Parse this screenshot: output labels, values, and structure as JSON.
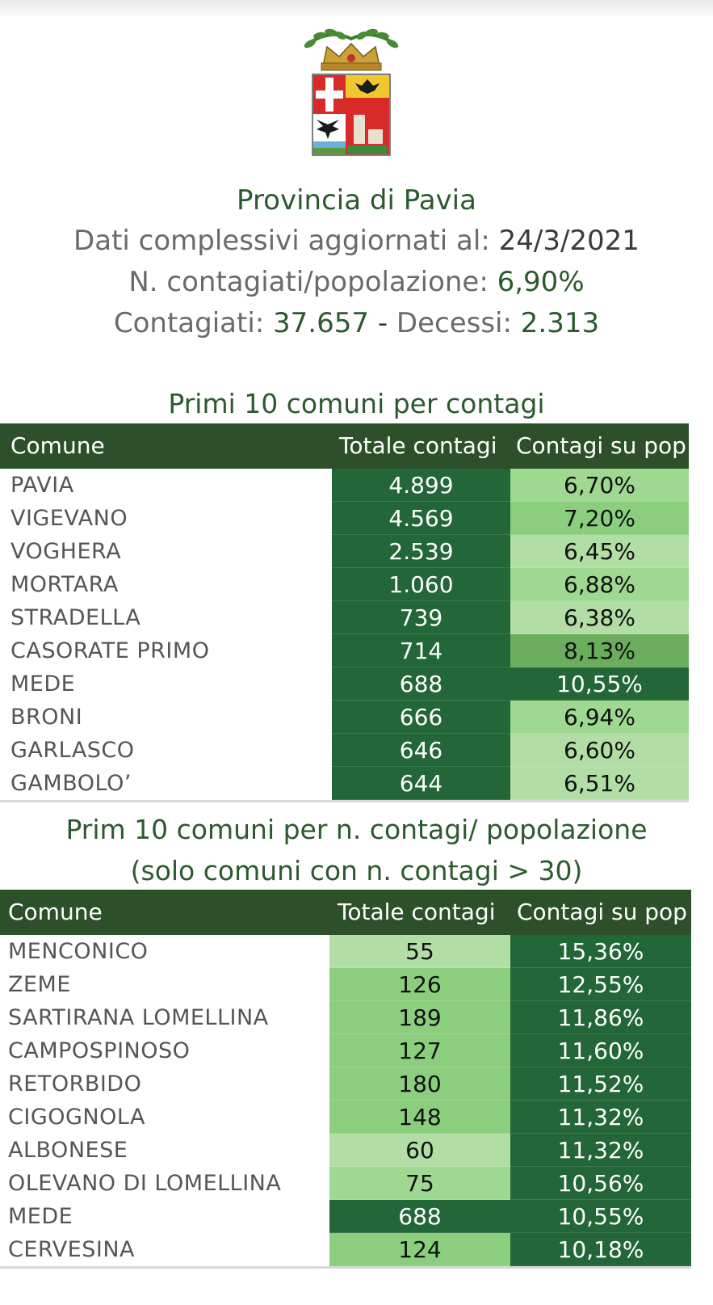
{
  "header": {
    "title": "Provincia di Pavia",
    "updated_label": "Dati complessivi aggiornati al:",
    "updated_value": "24/3/2021",
    "ratio_label": "N. contagiati/popolazione:",
    "ratio_value": "6,90%",
    "infected_label": "Contagiati:",
    "infected_value": "37.657",
    "separator": "-",
    "deaths_label": "Decessi:",
    "deaths_value": "2.313"
  },
  "colors": {
    "header_bg": "#2d4f2a",
    "title_green": "#2c5a2e",
    "dark_cell": "#236638",
    "scale": [
      "#b2dea6",
      "#9ed891",
      "#8bcf7e",
      "#6aad5c",
      "#236638"
    ]
  },
  "icons": {
    "crest": "provincia-di-pavia-coat-of-arms"
  },
  "table1": {
    "title": "Primi 10 comuni per contagi",
    "columns": [
      "Comune",
      "Totale contagi",
      "Contagi su pop"
    ],
    "rows": [
      {
        "comune": "PAVIA",
        "totale": "4.899",
        "perc": "6,70%",
        "tot_level": 4,
        "perc_level": 1
      },
      {
        "comune": "VIGEVANO",
        "totale": "4.569",
        "perc": "7,20%",
        "tot_level": 4,
        "perc_level": 2
      },
      {
        "comune": "VOGHERA",
        "totale": "2.539",
        "perc": "6,45%",
        "tot_level": 4,
        "perc_level": 0
      },
      {
        "comune": "MORTARA",
        "totale": "1.060",
        "perc": "6,88%",
        "tot_level": 4,
        "perc_level": 1
      },
      {
        "comune": "STRADELLA",
        "totale": "739",
        "perc": "6,38%",
        "tot_level": 4,
        "perc_level": 0
      },
      {
        "comune": "CASORATE PRIMO",
        "totale": "714",
        "perc": "8,13%",
        "tot_level": 4,
        "perc_level": 3
      },
      {
        "comune": "MEDE",
        "totale": "688",
        "perc": "10,55%",
        "tot_level": 4,
        "perc_level": 4
      },
      {
        "comune": "BRONI",
        "totale": "666",
        "perc": "6,94%",
        "tot_level": 4,
        "perc_level": 1
      },
      {
        "comune": "GARLASCO",
        "totale": "646",
        "perc": "6,60%",
        "tot_level": 4,
        "perc_level": 0
      },
      {
        "comune": "GAMBOLO’",
        "totale": "644",
        "perc": "6,51%",
        "tot_level": 4,
        "perc_level": 0
      }
    ]
  },
  "table2": {
    "title_line1": "Prim 10 comuni per n. contagi/ popolazione",
    "title_line2": "(solo comuni con n. contagi > 30)",
    "columns": [
      "Comune",
      "Totale contagi",
      "Contagi su pop"
    ],
    "rows": [
      {
        "comune": "MENCONICO",
        "totale": "55",
        "perc": "15,36%",
        "tot_level": 0,
        "perc_level": 4
      },
      {
        "comune": "ZEME",
        "totale": "126",
        "perc": "12,55%",
        "tot_level": 2,
        "perc_level": 4
      },
      {
        "comune": "SARTIRANA LOMELLINA",
        "totale": "189",
        "perc": "11,86%",
        "tot_level": 2,
        "perc_level": 4
      },
      {
        "comune": "CAMPOSPINOSO",
        "totale": "127",
        "perc": "11,60%",
        "tot_level": 2,
        "perc_level": 4
      },
      {
        "comune": "RETORBIDO",
        "totale": "180",
        "perc": "11,52%",
        "tot_level": 2,
        "perc_level": 4
      },
      {
        "comune": "CIGOGNOLA",
        "totale": "148",
        "perc": "11,32%",
        "tot_level": 2,
        "perc_level": 4
      },
      {
        "comune": "ALBONESE",
        "totale": "60",
        "perc": "11,32%",
        "tot_level": 0,
        "perc_level": 4
      },
      {
        "comune": "OLEVANO DI LOMELLINA",
        "totale": "75",
        "perc": "10,56%",
        "tot_level": 1,
        "perc_level": 4
      },
      {
        "comune": "MEDE",
        "totale": "688",
        "perc": "10,55%",
        "tot_level": 4,
        "perc_level": 4
      },
      {
        "comune": "CERVESINA",
        "totale": "124",
        "perc": "10,18%",
        "tot_level": 2,
        "perc_level": 4
      }
    ]
  }
}
